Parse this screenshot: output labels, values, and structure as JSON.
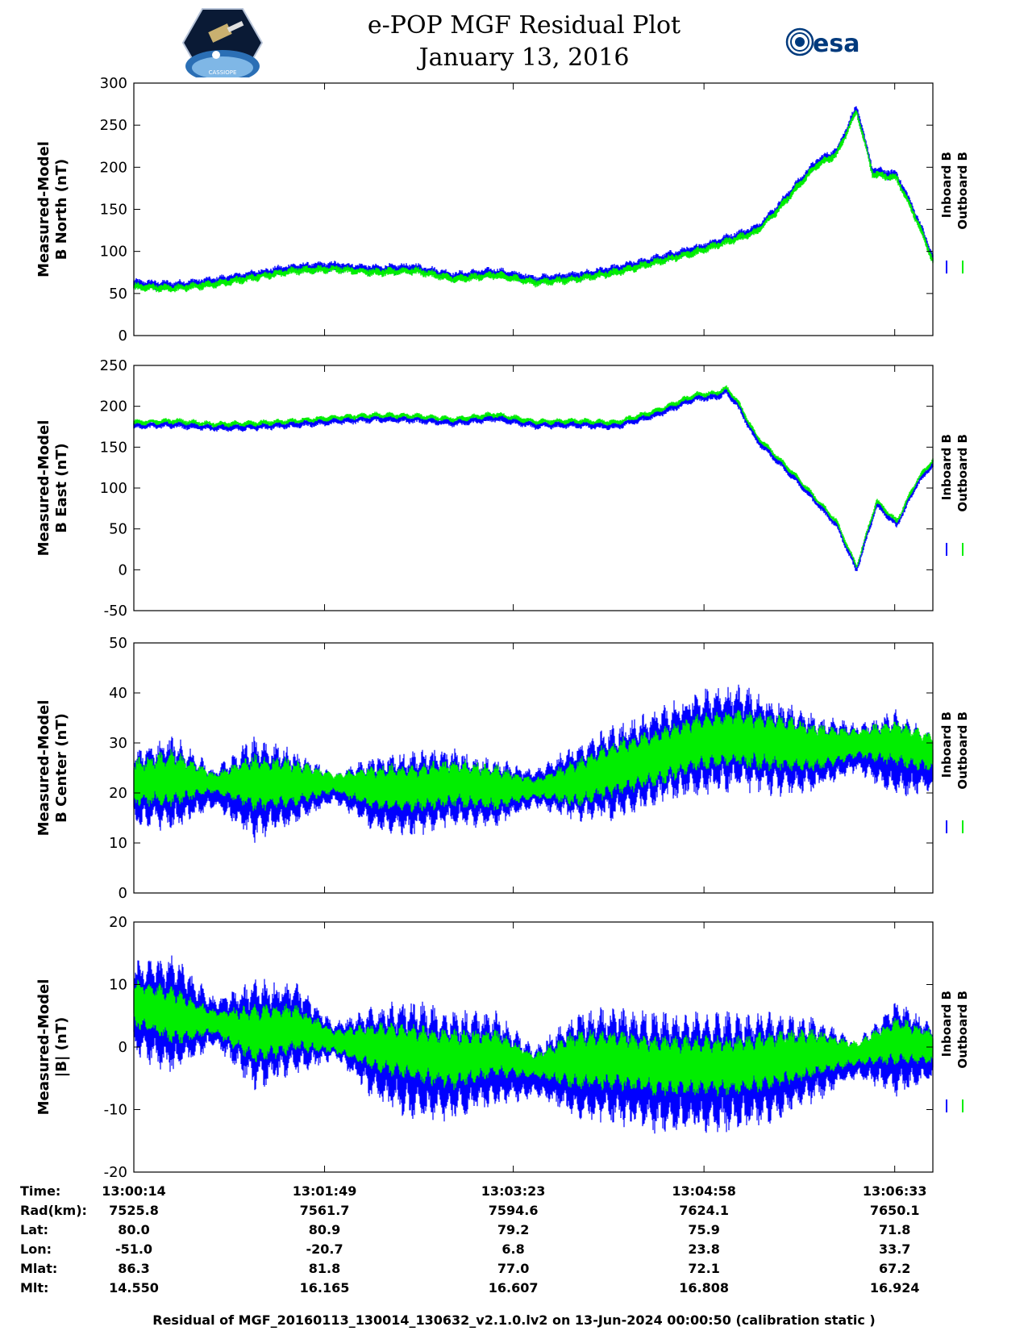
{
  "header": {
    "title": "e-POP MGF Residual Plot",
    "date": "January 13, 2016",
    "logo_left_text": "CASSIOPE",
    "logo_right_text": "esa"
  },
  "colors": {
    "inboard": "#0000ff",
    "outboard": "#00ee00",
    "axis": "#000000"
  },
  "legend": {
    "inboard": "Inboard B",
    "outboard": "Outboard B"
  },
  "chart_data": [
    {
      "type": "line",
      "ylabel": [
        "Measured-Model",
        "B North (nT)"
      ],
      "ylim": [
        0,
        300
      ],
      "yticks": [
        0,
        50,
        100,
        150,
        200,
        250,
        300
      ],
      "ytick_labels": [
        "0",
        "50",
        "100",
        "150",
        "200",
        "250",
        "300"
      ],
      "xlim_seconds": [
        0,
        398
      ],
      "x_seconds": [
        0,
        20,
        40,
        60,
        80,
        100,
        120,
        140,
        160,
        180,
        200,
        220,
        240,
        260,
        280,
        300,
        310,
        320,
        330,
        340,
        350,
        360,
        368,
        380,
        390,
        398
      ],
      "series": [
        {
          "name": "Inboard B",
          "values": [
            61,
            59,
            64,
            72,
            80,
            82,
            78,
            80,
            70,
            75,
            66,
            70,
            78,
            90,
            102,
            118,
            126,
            150,
            178,
            205,
            218,
            270,
            195,
            190,
            140,
            92
          ],
          "noise": 4
        },
        {
          "name": "Outboard B",
          "values": [
            58,
            56,
            61,
            69,
            77,
            79,
            75,
            77,
            67,
            72,
            63,
            67,
            75,
            87,
            99,
            115,
            123,
            147,
            175,
            202,
            215,
            267,
            192,
            187,
            137,
            89
          ],
          "noise": 3
        }
      ]
    },
    {
      "type": "line",
      "ylabel": [
        "Measured-Model",
        "B East (nT)"
      ],
      "ylim": [
        -50,
        250
      ],
      "yticks": [
        -50,
        0,
        50,
        100,
        150,
        200,
        250
      ],
      "ytick_labels": [
        "-50",
        "0",
        "50",
        "100",
        "150",
        "200",
        "250"
      ],
      "xlim_seconds": [
        0,
        398
      ],
      "x_seconds": [
        0,
        20,
        40,
        60,
        80,
        100,
        120,
        140,
        160,
        180,
        200,
        220,
        240,
        260,
        280,
        290,
        295,
        300,
        310,
        330,
        350,
        360,
        370,
        380,
        390,
        398
      ],
      "series": [
        {
          "name": "Inboard B",
          "values": [
            176,
            178,
            174,
            175,
            178,
            182,
            185,
            184,
            180,
            186,
            177,
            178,
            176,
            190,
            210,
            212,
            218,
            205,
            160,
            110,
            55,
            0,
            80,
            55,
            105,
            130
          ],
          "noise": 3
        },
        {
          "name": "Outboard B",
          "values": [
            180,
            182,
            178,
            179,
            182,
            186,
            189,
            188,
            184,
            190,
            181,
            182,
            180,
            194,
            214,
            216,
            222,
            209,
            164,
            114,
            59,
            4,
            84,
            59,
            109,
            134
          ],
          "noise": 2
        }
      ]
    },
    {
      "type": "line",
      "ylabel": [
        "Measured-Model",
        "B Center (nT)"
      ],
      "ylim": [
        0,
        50
      ],
      "yticks": [
        0,
        10,
        20,
        30,
        40,
        50
      ],
      "ytick_labels": [
        "0",
        "10",
        "20",
        "30",
        "40",
        "50"
      ],
      "xlim_seconds": [
        0,
        398
      ],
      "x_seconds": [
        0,
        20,
        40,
        60,
        80,
        100,
        120,
        140,
        160,
        180,
        200,
        220,
        240,
        260,
        280,
        300,
        320,
        340,
        360,
        380,
        398
      ],
      "series": [
        {
          "name": "Inboard B",
          "values": [
            21,
            22,
            21,
            21,
            21,
            21,
            20,
            20,
            21,
            20,
            21,
            22,
            24,
            27,
            30,
            31,
            29,
            28,
            29,
            28,
            26
          ],
          "amplitude": [
            8,
            10,
            4,
            11,
            8,
            3,
            8,
            9,
            8,
            7,
            4,
            8,
            10,
            10,
            11,
            11,
            10,
            8,
            5,
            9,
            6
          ]
        },
        {
          "name": "Outboard B",
          "values": [
            22,
            23,
            22,
            22,
            22,
            22,
            21,
            21,
            22,
            21,
            21,
            22,
            25,
            27,
            30,
            31,
            30,
            29,
            30,
            30,
            28
          ],
          "amplitude": [
            5,
            6,
            2,
            6,
            5,
            2,
            5,
            5,
            5,
            5,
            2,
            5,
            6,
            6,
            6,
            6,
            6,
            5,
            3,
            5,
            4
          ]
        }
      ]
    },
    {
      "type": "line",
      "ylabel": [
        "Measured-Model",
        "|B| (nT)"
      ],
      "ylim": [
        -20,
        20
      ],
      "yticks": [
        -20,
        -10,
        0,
        10,
        20
      ],
      "ytick_labels": [
        "-20",
        "-10",
        "0",
        "10",
        "20"
      ],
      "xlim_seconds": [
        0,
        398
      ],
      "x_seconds": [
        0,
        20,
        40,
        60,
        80,
        100,
        120,
        140,
        160,
        180,
        200,
        220,
        240,
        260,
        280,
        300,
        320,
        340,
        360,
        380,
        398
      ],
      "series": [
        {
          "name": "Inboard B",
          "values": [
            6,
            5,
            4,
            2,
            3,
            1,
            -1,
            -2,
            -3,
            -2,
            -4,
            -3,
            -3,
            -4,
            -4,
            -4,
            -3,
            -2,
            -2,
            0,
            -1
          ],
          "amplitude": [
            8,
            10,
            4,
            9,
            8,
            3,
            8,
            10,
            9,
            8,
            4,
            9,
            10,
            10,
            10,
            10,
            9,
            7,
            3,
            8,
            5
          ]
        },
        {
          "name": "Outboard B",
          "values": [
            7,
            5,
            4,
            2,
            3,
            1,
            0,
            -1,
            -2,
            -1,
            -3,
            -2,
            -2,
            -3,
            -3,
            -3,
            -2,
            -1,
            -1,
            1,
            0
          ],
          "amplitude": [
            4,
            5,
            2,
            5,
            4,
            2,
            4,
            5,
            5,
            4,
            2,
            5,
            5,
            5,
            5,
            5,
            5,
            4,
            2,
            4,
            3
          ]
        }
      ]
    }
  ],
  "orbit_info": {
    "labels": [
      "Time:",
      "Rad(km):",
      "Lat:",
      "Lon:",
      "Mlat:",
      "Mlt:"
    ],
    "columns": [
      [
        "13:00:14",
        "7525.8",
        "80.0",
        "-51.0",
        "86.3",
        "14.550"
      ],
      [
        "13:01:49",
        "7561.7",
        "80.9",
        "-20.7",
        "81.8",
        "16.165"
      ],
      [
        "13:03:23",
        "7594.6",
        "79.2",
        "6.8",
        "77.0",
        "16.607"
      ],
      [
        "13:04:58",
        "7624.1",
        "75.9",
        "23.8",
        "72.1",
        "16.808"
      ],
      [
        "13:06:33",
        "7650.1",
        "71.8",
        "33.7",
        "67.2",
        "16.924"
      ]
    ],
    "x_tick_seconds": [
      0,
      95,
      189,
      284,
      379
    ]
  },
  "footer": "Residual of MGF_20160113_130014_130632_v2.1.0.lv2 on 13-Jun-2024 00:00:50 (calibration static )"
}
